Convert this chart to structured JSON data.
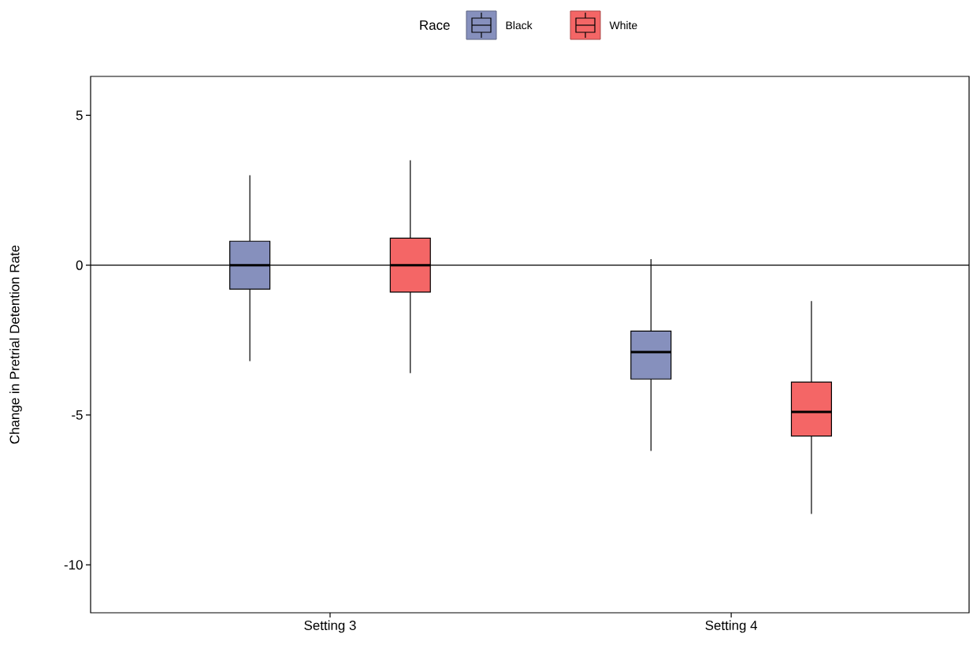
{
  "chart_data": {
    "type": "box",
    "ylabel": "Change in Pretrial Detention Rate",
    "legend_title": "Race",
    "legend": "top",
    "grid": false,
    "categories": [
      "Setting 3",
      "Setting 4"
    ],
    "ylim": [
      -11.6,
      6.3
    ],
    "yticks": [
      -10,
      -5,
      0,
      5
    ],
    "ref_lines": [
      {
        "axis": "y",
        "value": 0
      }
    ],
    "series": [
      {
        "name": "Black",
        "color": "#8690bd",
        "boxes": [
          {
            "low": -3.2,
            "q1": -0.8,
            "median": 0,
            "q3": 0.8,
            "high": 3.0
          },
          {
            "low": -6.2,
            "q1": -3.8,
            "median": -2.9,
            "q3": -2.2,
            "high": 0.2
          }
        ]
      },
      {
        "name": "White",
        "color": "#f46666",
        "boxes": [
          {
            "low": -3.6,
            "q1": -0.9,
            "median": 0,
            "q3": 0.9,
            "high": 3.5
          },
          {
            "low": -8.3,
            "q1": -5.7,
            "median": -4.9,
            "q3": -3.9,
            "high": -1.2
          }
        ]
      }
    ]
  }
}
